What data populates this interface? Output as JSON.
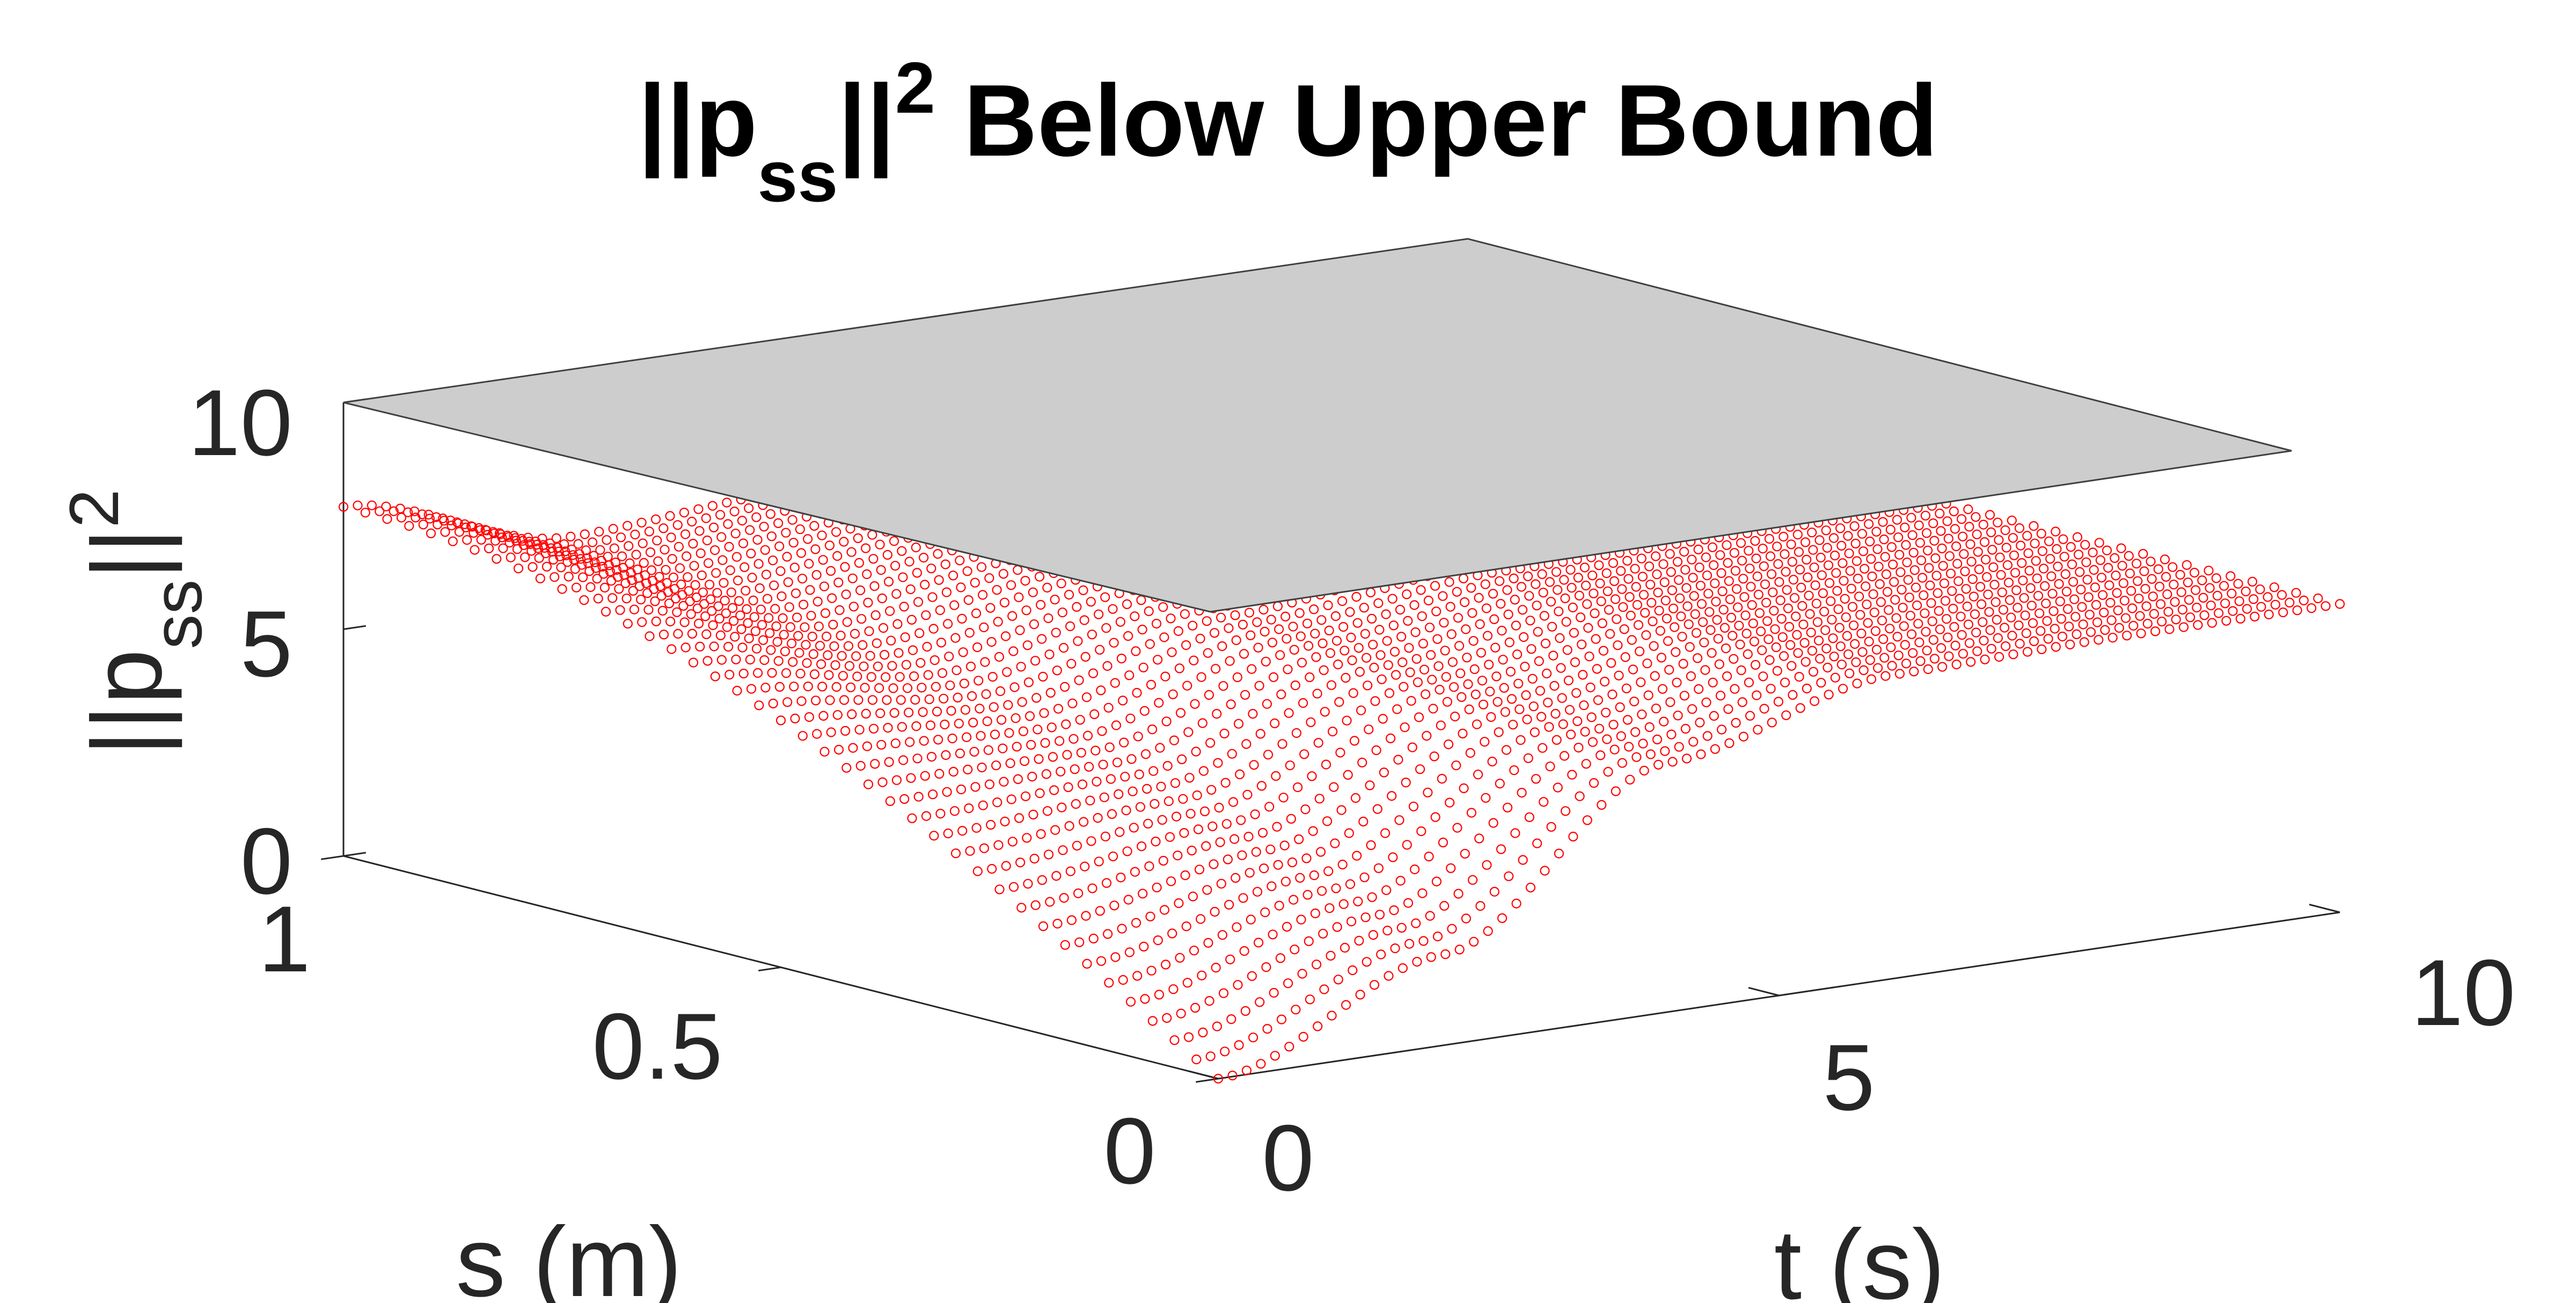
{
  "chart_data": {
    "type": "surface3d",
    "title": {
      "prefix": "||p",
      "subscript": "ss",
      "bars": "||",
      "superscript": "2",
      "rest": " Below Upper Bound"
    },
    "xlabel": "t (s)",
    "ylabel": "s (m)",
    "zlabel": {
      "prefix": "||p",
      "subscript": "ss",
      "bars": "||",
      "superscript": "2"
    },
    "x_ticks": [
      "0",
      "5",
      "10"
    ],
    "y_ticks": [
      "0",
      "0.5",
      "1"
    ],
    "z_ticks": [
      "0",
      "5",
      "10"
    ],
    "xlim": [
      0,
      10
    ],
    "ylim": [
      0,
      1
    ],
    "zlim": [
      0,
      10
    ],
    "series": [
      {
        "style": "markers",
        "marker": "circle",
        "color": "#ff0000",
        "t_samples": 80,
        "s_samples": 41,
        "surface_profile": [
          {
            "t": 0,
            "value_at_s1": 7.7,
            "value_at_s0": 0
          },
          {
            "t": 2,
            "value_at_s1": 6.3,
            "value_at_s0": 2.0
          },
          {
            "t": 4,
            "value_at_s1": 6.6,
            "value_at_s0": 5.5
          },
          {
            "t": 6,
            "value_at_s1": 6.8,
            "value_at_s0": 6.7
          },
          {
            "t": 8,
            "value_at_s1": 6.8,
            "value_at_s0": 6.8
          },
          {
            "t": 10,
            "value_at_s1": 6.8,
            "value_at_s0": 6.8
          }
        ]
      },
      {
        "style": "plane",
        "color": "#cdcdcd",
        "edge_color": "#404040",
        "z": 10
      }
    ],
    "grid": false,
    "background": "#ffffff",
    "axis_color": "#262626"
  }
}
